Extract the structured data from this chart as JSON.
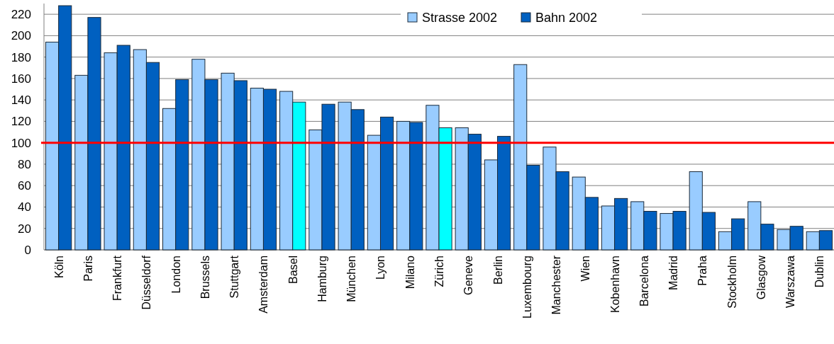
{
  "chart_data": {
    "type": "bar",
    "categories": [
      "Köln",
      "Paris",
      "Frankfurt",
      "Düsseldorf",
      "London",
      "Brussels",
      "Stuttgart",
      "Amsterdam",
      "Basel",
      "Hamburg",
      "München",
      "Lyon",
      "Milano",
      "Zürich",
      "Geneve",
      "Berlin",
      "Luxembourg",
      "Manchester",
      "Wien",
      "Kobenhavn",
      "Barcelona",
      "Madrid",
      "Praha",
      "Stockholm",
      "Glasgow",
      "Warszawa",
      "Dublin"
    ],
    "series": [
      {
        "name": "Strasse 2002",
        "color": "#99ccff",
        "values": [
          194,
          163,
          184,
          187,
          132,
          178,
          165,
          151,
          148,
          112,
          138,
          107,
          120,
          135,
          114,
          84,
          173,
          96,
          68,
          41,
          45,
          34,
          73,
          17,
          45,
          19,
          17
        ]
      },
      {
        "name": "Bahn 2002",
        "color": "#0060c0",
        "colors": [
          "#0060c0",
          "#0060c0",
          "#0060c0",
          "#0060c0",
          "#0060c0",
          "#0060c0",
          "#0060c0",
          "#0060c0",
          "#00ffff",
          "#0060c0",
          "#0060c0",
          "#0060c0",
          "#0060c0",
          "#00ffff",
          "#0060c0",
          "#0060c0",
          "#0060c0",
          "#0060c0",
          "#0060c0",
          "#0060c0",
          "#0060c0",
          "#0060c0",
          "#0060c0",
          "#0060c0",
          "#0060c0",
          "#0060c0",
          "#0060c0"
        ],
        "values": [
          228,
          217,
          191,
          175,
          159,
          159,
          158,
          150,
          138,
          136,
          131,
          124,
          119,
          114,
          108,
          106,
          79,
          73,
          49,
          48,
          36,
          36,
          35,
          29,
          24,
          22,
          18
        ]
      }
    ],
    "ylim": [
      0,
      230
    ],
    "yticks": [
      0,
      20,
      40,
      60,
      80,
      100,
      120,
      140,
      160,
      180,
      200,
      220
    ],
    "grid": "y",
    "legend": "top right",
    "ref_lines": [
      {
        "axis": "y",
        "value": 100,
        "color": "#ff0000"
      }
    ]
  }
}
